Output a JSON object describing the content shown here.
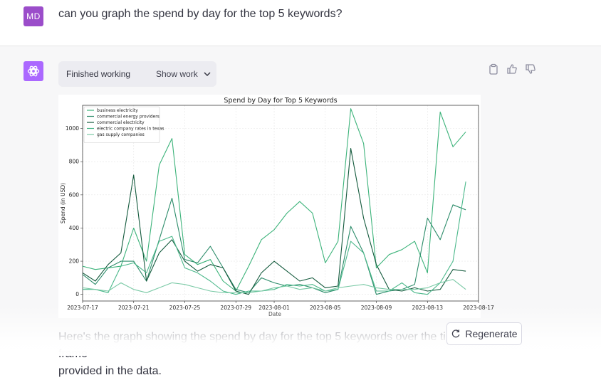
{
  "user": {
    "initials": "MD",
    "message": "can you graph the spend by day for the top 5 keywords?"
  },
  "assistant": {
    "work_label": "Finished working",
    "show_work_label": "Show work",
    "reply_line1": "Here's the graph showing the spend by day for the top 5 keywords over the time frame",
    "reply_line2": "provided in the data."
  },
  "regenerate_label": "Regenerate",
  "icons": {
    "copy": "clipboard-icon",
    "like": "thumbs-up-icon",
    "dislike": "thumbs-down-icon",
    "chevron": "chevron-down-icon",
    "regen": "refresh-icon"
  },
  "chart_data": {
    "type": "line",
    "title": "Spend by Day for Top 5 Keywords",
    "xlabel": "Date",
    "ylabel": "Spend (in USD)",
    "ylim": [
      -40,
      1140
    ],
    "yticks": [
      0,
      200,
      400,
      600,
      800,
      1000
    ],
    "xticks": [
      "2023-07-17",
      "2023-07-21",
      "2023-07-25",
      "2023-07-29",
      "2023-08-01",
      "2023-08-05",
      "2023-08-09",
      "2023-08-13",
      "2023-08-17"
    ],
    "x_start": "2023-07-17",
    "x_end": "2023-08-17",
    "grid": true,
    "legend_position": "top-left",
    "series": [
      {
        "name": "business electricity",
        "color": "#3cb37a",
        "values": [
          170,
          150,
          160,
          170,
          400,
          200,
          780,
          940,
          240,
          180,
          210,
          80,
          20,
          170,
          330,
          390,
          490,
          560,
          490,
          190,
          320,
          1120,
          910,
          160,
          240,
          270,
          320,
          130,
          1100,
          890,
          980
        ]
      },
      {
        "name": "commercial energy providers",
        "color": "#2c8c6a",
        "values": [
          120,
          60,
          160,
          200,
          200,
          80,
          330,
          580,
          210,
          190,
          290,
          160,
          30,
          10,
          100,
          70,
          50,
          60,
          40,
          10,
          30,
          410,
          250,
          0,
          20,
          30,
          60,
          460,
          330,
          540,
          510
        ]
      },
      {
        "name": "commercial electricity",
        "color": "#145a3d",
        "values": [
          130,
          80,
          180,
          250,
          720,
          80,
          250,
          330,
          200,
          140,
          180,
          160,
          20,
          0,
          130,
          200,
          140,
          80,
          100,
          40,
          50,
          880,
          460,
          180,
          30,
          20,
          40,
          20,
          30,
          150,
          140
        ]
      },
      {
        "name": "electric company rates in texas",
        "color": "#4ab88a",
        "values": [
          30,
          30,
          10,
          170,
          190,
          130,
          320,
          350,
          160,
          130,
          80,
          20,
          0,
          20,
          20,
          30,
          60,
          50,
          60,
          20,
          30,
          320,
          250,
          20,
          20,
          70,
          10,
          0,
          70,
          200,
          680
        ]
      },
      {
        "name": "gas supply companies",
        "color": "#79c9a5",
        "values": [
          40,
          30,
          20,
          70,
          30,
          10,
          40,
          70,
          60,
          40,
          20,
          10,
          10,
          10,
          20,
          40,
          50,
          30,
          40,
          20,
          40,
          50,
          60,
          40,
          30,
          30,
          30,
          40,
          70,
          90,
          30
        ]
      }
    ]
  }
}
